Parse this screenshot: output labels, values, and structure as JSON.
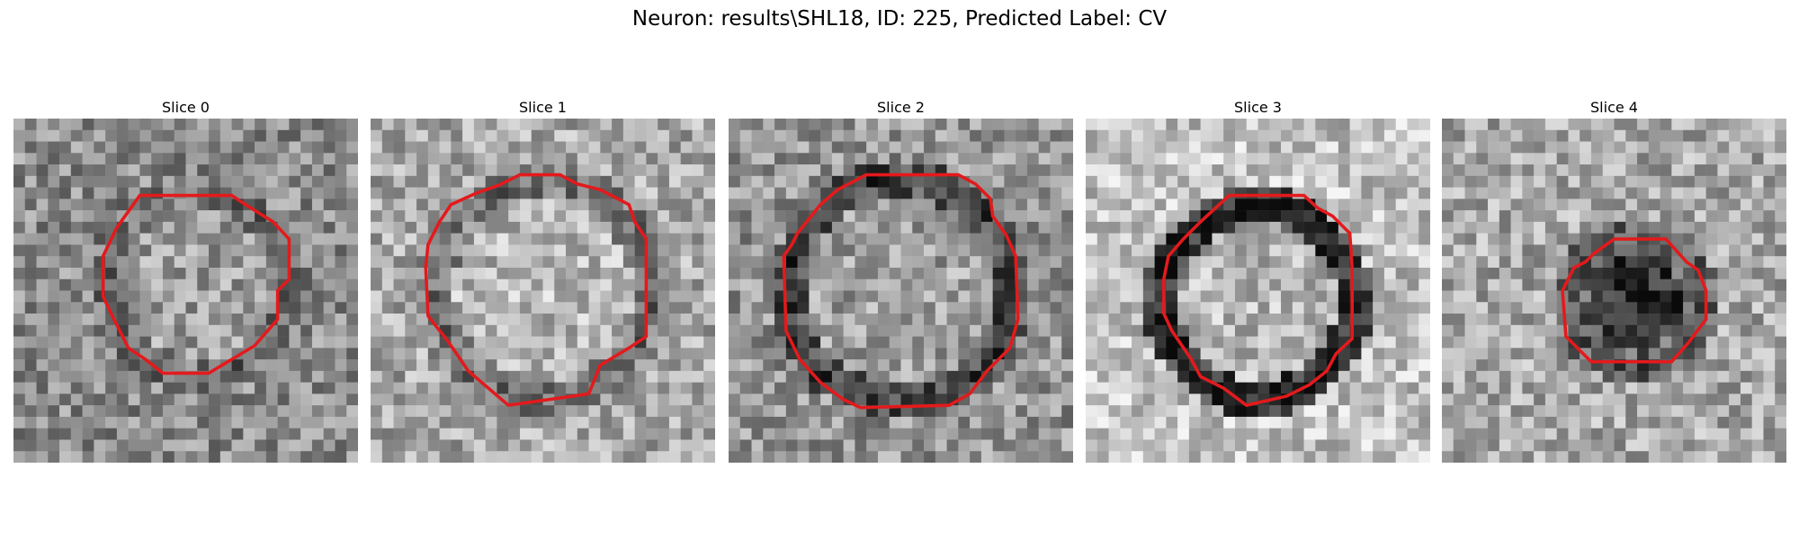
{
  "figure": {
    "title": "Neuron: results\\SHL18, ID: 225, Predicted Label: CV",
    "contour_color": "#e31a1c",
    "colormap": "gray"
  },
  "panels": [
    {
      "label": "Slice 0",
      "contour_shape": "octagon-small"
    },
    {
      "label": "Slice 1",
      "contour_shape": "octagon-large"
    },
    {
      "label": "Slice 2",
      "contour_shape": "octagon-large"
    },
    {
      "label": "Slice 3",
      "contour_shape": "octagon-medium"
    },
    {
      "label": "Slice 4",
      "contour_shape": "octagon-small"
    }
  ]
}
